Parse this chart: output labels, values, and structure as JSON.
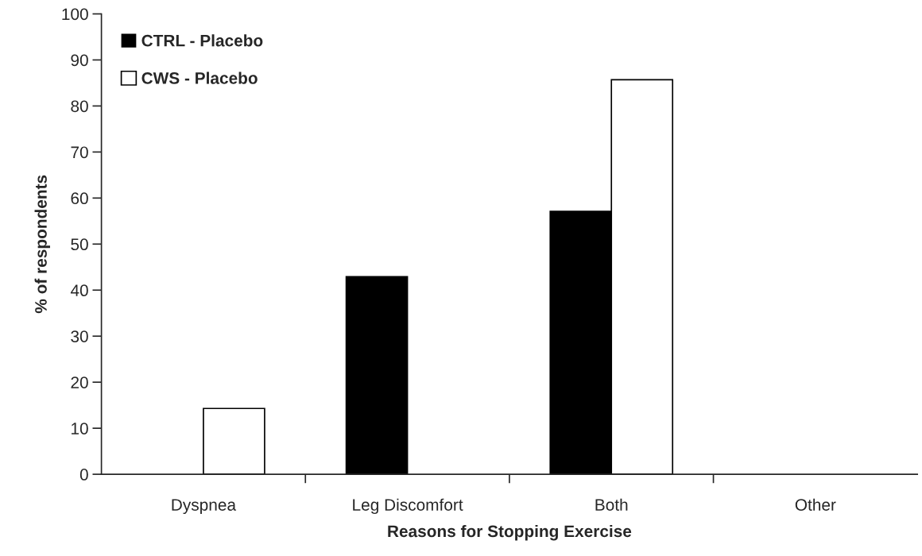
{
  "chart_data": {
    "type": "bar",
    "xlabel": "Reasons for Stopping Exercise",
    "ylabel": "% of respondents",
    "categories": [
      "Dyspnea",
      "Leg Discomfort",
      "Both",
      "Other"
    ],
    "series": [
      {
        "name": "CTRL - Placebo",
        "color": "#000000",
        "values": [
          0,
          42.9,
          57.1,
          0
        ]
      },
      {
        "name": "CWS - Placebo",
        "color": "#ffffff",
        "values": [
          14.3,
          0,
          85.7,
          0
        ]
      }
    ],
    "ylim": [
      0,
      100
    ],
    "yticks": [
      0,
      10,
      20,
      30,
      40,
      50,
      60,
      70,
      80,
      90,
      100
    ],
    "grid": false,
    "legend": "top left"
  }
}
